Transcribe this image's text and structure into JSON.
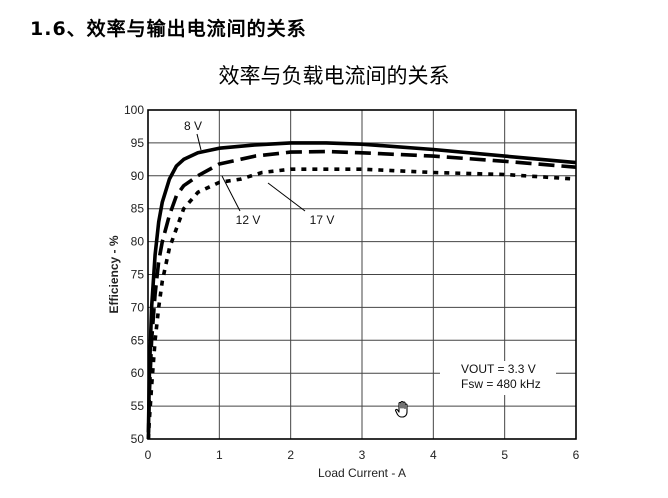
{
  "section_heading": "1.6、效率与输出电流间的关系",
  "chart_data": {
    "type": "line",
    "title": "效率与负载电流间的关系",
    "xlabel": "Load Current - A",
    "ylabel": "Efficiency - %",
    "xlim": [
      0,
      6
    ],
    "ylim": [
      50,
      100
    ],
    "x_ticks": [
      "0",
      "1",
      "2",
      "3",
      "4",
      "5",
      "6"
    ],
    "y_ticks": [
      "50",
      "55",
      "60",
      "65",
      "70",
      "75",
      "80",
      "85",
      "90",
      "95",
      "100"
    ],
    "grid": true,
    "series": [
      {
        "name": "8 V",
        "style": "solid",
        "x": [
          0.005,
          0.02,
          0.05,
          0.1,
          0.15,
          0.2,
          0.3,
          0.4,
          0.5,
          0.7,
          1.0,
          1.5,
          2.0,
          2.5,
          3.0,
          4.0,
          5.0,
          6.0
        ],
        "y": [
          51,
          60,
          70,
          78,
          83,
          86,
          89.5,
          91.5,
          92.5,
          93.5,
          94.2,
          94.7,
          95,
          95,
          94.8,
          94,
          93,
          92
        ]
      },
      {
        "name": "12 V",
        "style": "dashed",
        "x": [
          0.005,
          0.02,
          0.05,
          0.1,
          0.15,
          0.2,
          0.3,
          0.4,
          0.5,
          0.7,
          1.0,
          1.5,
          2.0,
          2.5,
          3.0,
          4.0,
          5.0,
          6.0
        ],
        "y": [
          50,
          57,
          65,
          72,
          77,
          80,
          84,
          87,
          88.5,
          90,
          91.8,
          93,
          93.6,
          93.7,
          93.5,
          93,
          92.2,
          91.3
        ]
      },
      {
        "name": "17 V",
        "style": "dotted",
        "x": [
          0.005,
          0.02,
          0.05,
          0.1,
          0.15,
          0.2,
          0.3,
          0.4,
          0.5,
          0.7,
          1.0,
          1.3,
          1.6,
          2.0,
          2.5,
          3.0,
          4.0,
          5.0,
          6.0
        ],
        "y": [
          50,
          53,
          58,
          65,
          70,
          74,
          79,
          82,
          85,
          87.5,
          89,
          89.5,
          90.5,
          91,
          91,
          91,
          90.5,
          90.2,
          89.5
        ]
      }
    ],
    "annotations": [
      "VOUT = 3.3 V",
      "Fsw = 480 kHz"
    ]
  }
}
